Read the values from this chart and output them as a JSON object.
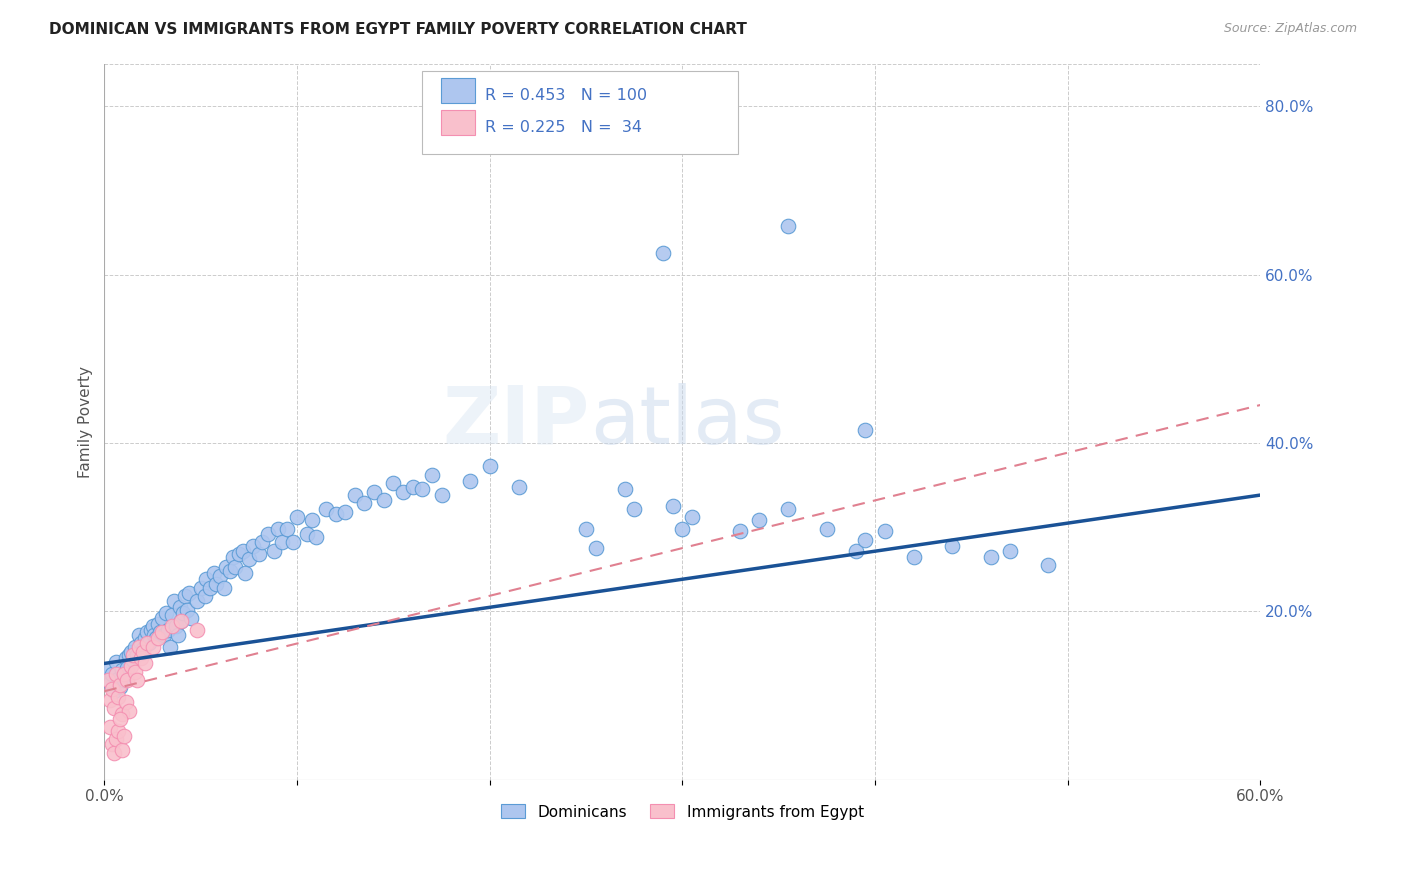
{
  "title": "DOMINICAN VS IMMIGRANTS FROM EGYPT FAMILY POVERTY CORRELATION CHART",
  "source": "Source: ZipAtlas.com",
  "ylabel": "Family Poverty",
  "xlim": [
    0.0,
    0.6
  ],
  "ylim": [
    0.0,
    0.85
  ],
  "ytick_labels_right": [
    "20.0%",
    "40.0%",
    "60.0%",
    "80.0%"
  ],
  "ytick_vals_right": [
    0.2,
    0.4,
    0.6,
    0.8
  ],
  "legend_labels_bottom": [
    "Dominicans",
    "Immigrants from Egypt"
  ],
  "blue_color": "#5b9bd5",
  "pink_color": "#f48fb1",
  "blue_fill": "#aec6ef",
  "pink_fill": "#f9c0cc",
  "trend_blue": "#1a5296",
  "trend_pink": "#e08090",
  "watermark": "ZIPatlas",
  "dominican_points": [
    [
      0.002,
      0.13
    ],
    [
      0.003,
      0.115
    ],
    [
      0.004,
      0.125
    ],
    [
      0.005,
      0.105
    ],
    [
      0.006,
      0.14
    ],
    [
      0.007,
      0.12
    ],
    [
      0.008,
      0.11
    ],
    [
      0.009,
      0.13
    ],
    [
      0.01,
      0.118
    ],
    [
      0.011,
      0.145
    ],
    [
      0.012,
      0.132
    ],
    [
      0.013,
      0.148
    ],
    [
      0.014,
      0.152
    ],
    [
      0.015,
      0.142
    ],
    [
      0.016,
      0.158
    ],
    [
      0.017,
      0.148
    ],
    [
      0.018,
      0.172
    ],
    [
      0.019,
      0.162
    ],
    [
      0.02,
      0.155
    ],
    [
      0.021,
      0.168
    ],
    [
      0.022,
      0.175
    ],
    [
      0.023,
      0.162
    ],
    [
      0.024,
      0.178
    ],
    [
      0.025,
      0.182
    ],
    [
      0.026,
      0.172
    ],
    [
      0.027,
      0.168
    ],
    [
      0.028,
      0.185
    ],
    [
      0.029,
      0.175
    ],
    [
      0.03,
      0.192
    ],
    [
      0.031,
      0.172
    ],
    [
      0.032,
      0.198
    ],
    [
      0.033,
      0.178
    ],
    [
      0.034,
      0.158
    ],
    [
      0.035,
      0.195
    ],
    [
      0.036,
      0.212
    ],
    [
      0.037,
      0.182
    ],
    [
      0.038,
      0.172
    ],
    [
      0.039,
      0.205
    ],
    [
      0.04,
      0.188
    ],
    [
      0.041,
      0.198
    ],
    [
      0.042,
      0.218
    ],
    [
      0.043,
      0.202
    ],
    [
      0.044,
      0.222
    ],
    [
      0.045,
      0.192
    ],
    [
      0.048,
      0.212
    ],
    [
      0.05,
      0.228
    ],
    [
      0.052,
      0.218
    ],
    [
      0.053,
      0.238
    ],
    [
      0.055,
      0.228
    ],
    [
      0.057,
      0.245
    ],
    [
      0.058,
      0.232
    ],
    [
      0.06,
      0.242
    ],
    [
      0.062,
      0.228
    ],
    [
      0.063,
      0.252
    ],
    [
      0.065,
      0.248
    ],
    [
      0.067,
      0.265
    ],
    [
      0.068,
      0.252
    ],
    [
      0.07,
      0.268
    ],
    [
      0.072,
      0.272
    ],
    [
      0.073,
      0.245
    ],
    [
      0.075,
      0.262
    ],
    [
      0.077,
      0.278
    ],
    [
      0.08,
      0.268
    ],
    [
      0.082,
      0.282
    ],
    [
      0.085,
      0.292
    ],
    [
      0.088,
      0.272
    ],
    [
      0.09,
      0.298
    ],
    [
      0.092,
      0.282
    ],
    [
      0.095,
      0.298
    ],
    [
      0.098,
      0.282
    ],
    [
      0.1,
      0.312
    ],
    [
      0.105,
      0.292
    ],
    [
      0.108,
      0.308
    ],
    [
      0.11,
      0.288
    ],
    [
      0.115,
      0.322
    ],
    [
      0.12,
      0.315
    ],
    [
      0.125,
      0.318
    ],
    [
      0.13,
      0.338
    ],
    [
      0.135,
      0.328
    ],
    [
      0.14,
      0.342
    ],
    [
      0.145,
      0.332
    ],
    [
      0.15,
      0.352
    ],
    [
      0.155,
      0.342
    ],
    [
      0.16,
      0.348
    ],
    [
      0.165,
      0.345
    ],
    [
      0.17,
      0.362
    ],
    [
      0.175,
      0.338
    ],
    [
      0.19,
      0.355
    ],
    [
      0.2,
      0.372
    ],
    [
      0.215,
      0.348
    ],
    [
      0.25,
      0.298
    ],
    [
      0.255,
      0.275
    ],
    [
      0.27,
      0.345
    ],
    [
      0.275,
      0.322
    ],
    [
      0.295,
      0.325
    ],
    [
      0.3,
      0.298
    ],
    [
      0.305,
      0.312
    ],
    [
      0.33,
      0.295
    ],
    [
      0.34,
      0.308
    ],
    [
      0.355,
      0.322
    ],
    [
      0.375,
      0.298
    ],
    [
      0.39,
      0.272
    ],
    [
      0.395,
      0.285
    ],
    [
      0.405,
      0.295
    ],
    [
      0.42,
      0.265
    ],
    [
      0.44,
      0.278
    ],
    [
      0.46,
      0.265
    ],
    [
      0.47,
      0.272
    ],
    [
      0.49,
      0.255
    ],
    [
      0.29,
      0.625
    ],
    [
      0.355,
      0.658
    ],
    [
      0.395,
      0.415
    ]
  ],
  "egypt_points": [
    [
      0.002,
      0.118
    ],
    [
      0.003,
      0.095
    ],
    [
      0.004,
      0.108
    ],
    [
      0.005,
      0.085
    ],
    [
      0.006,
      0.125
    ],
    [
      0.007,
      0.098
    ],
    [
      0.008,
      0.112
    ],
    [
      0.009,
      0.078
    ],
    [
      0.01,
      0.125
    ],
    [
      0.011,
      0.092
    ],
    [
      0.012,
      0.118
    ],
    [
      0.013,
      0.082
    ],
    [
      0.014,
      0.135
    ],
    [
      0.015,
      0.148
    ],
    [
      0.016,
      0.128
    ],
    [
      0.017,
      0.118
    ],
    [
      0.018,
      0.158
    ],
    [
      0.019,
      0.145
    ],
    [
      0.02,
      0.152
    ],
    [
      0.021,
      0.138
    ],
    [
      0.022,
      0.162
    ],
    [
      0.025,
      0.158
    ],
    [
      0.028,
      0.168
    ],
    [
      0.03,
      0.175
    ],
    [
      0.035,
      0.182
    ],
    [
      0.04,
      0.188
    ],
    [
      0.048,
      0.178
    ],
    [
      0.003,
      0.062
    ],
    [
      0.004,
      0.042
    ],
    [
      0.005,
      0.032
    ],
    [
      0.006,
      0.048
    ],
    [
      0.007,
      0.058
    ],
    [
      0.008,
      0.072
    ],
    [
      0.009,
      0.035
    ],
    [
      0.01,
      0.052
    ]
  ],
  "dom_trend": [
    0.0,
    0.6,
    0.138,
    0.338
  ],
  "egypt_trend": [
    0.0,
    0.6,
    0.105,
    0.445
  ]
}
